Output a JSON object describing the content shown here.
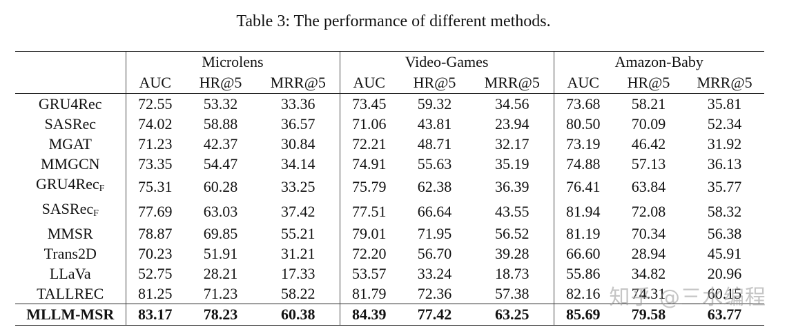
{
  "caption": "Table 3: The performance of different methods.",
  "groups": [
    "Microlens",
    "Video-Games",
    "Amazon-Baby"
  ],
  "metrics": [
    "AUC",
    "HR@5",
    "MRR@5"
  ],
  "rows": [
    {
      "method": "GRU4Rec",
      "sub": "",
      "values": [
        "72.55",
        "53.32",
        "33.36",
        "73.45",
        "59.32",
        "34.56",
        "73.68",
        "58.21",
        "35.81"
      ]
    },
    {
      "method": "SASRec",
      "sub": "",
      "values": [
        "74.02",
        "58.88",
        "36.57",
        "71.06",
        "43.81",
        "23.94",
        "80.50",
        "70.09",
        "52.34"
      ]
    },
    {
      "method": "MGAT",
      "sub": "",
      "values": [
        "71.23",
        "42.37",
        "30.84",
        "72.21",
        "48.71",
        "32.17",
        "73.19",
        "46.42",
        "31.92"
      ]
    },
    {
      "method": "MMGCN",
      "sub": "",
      "values": [
        "73.35",
        "54.47",
        "34.14",
        "74.91",
        "55.63",
        "35.19",
        "74.88",
        "57.13",
        "36.13"
      ]
    },
    {
      "method": "GRU4Rec",
      "sub": "F",
      "values": [
        "75.31",
        "60.28",
        "33.25",
        "75.79",
        "62.38",
        "36.39",
        "76.41",
        "63.84",
        "35.77"
      ]
    },
    {
      "method": "SASRec",
      "sub": "F",
      "values": [
        "77.69",
        "63.03",
        "37.42",
        "77.51",
        "66.64",
        "43.55",
        "81.94",
        "72.08",
        "58.32"
      ]
    },
    {
      "method": "MMSR",
      "sub": "",
      "values": [
        "78.87",
        "69.85",
        "55.21",
        "79.01",
        "71.95",
        "56.52",
        "81.19",
        "70.34",
        "56.38"
      ]
    },
    {
      "method": "Trans2D",
      "sub": "",
      "values": [
        "70.23",
        "51.91",
        "31.21",
        "72.20",
        "56.70",
        "39.28",
        "66.60",
        "28.94",
        "45.91"
      ]
    },
    {
      "method": "LLaVa",
      "sub": "",
      "values": [
        "52.75",
        "28.21",
        "17.33",
        "53.57",
        "33.24",
        "18.73",
        "55.86",
        "34.82",
        "20.96"
      ]
    },
    {
      "method": "TALLREC",
      "sub": "",
      "values": [
        "81.25",
        "71.23",
        "58.22",
        "81.79",
        "72.36",
        "57.38",
        "82.16",
        "74.31",
        "60.15"
      ]
    }
  ],
  "best_row": {
    "method": "MLLM-MSR",
    "values": [
      "83.17",
      "78.23",
      "60.38",
      "84.39",
      "77.42",
      "63.25",
      "85.69",
      "79.58",
      "63.77"
    ]
  },
  "watermark": "知乎 @三水编程"
}
